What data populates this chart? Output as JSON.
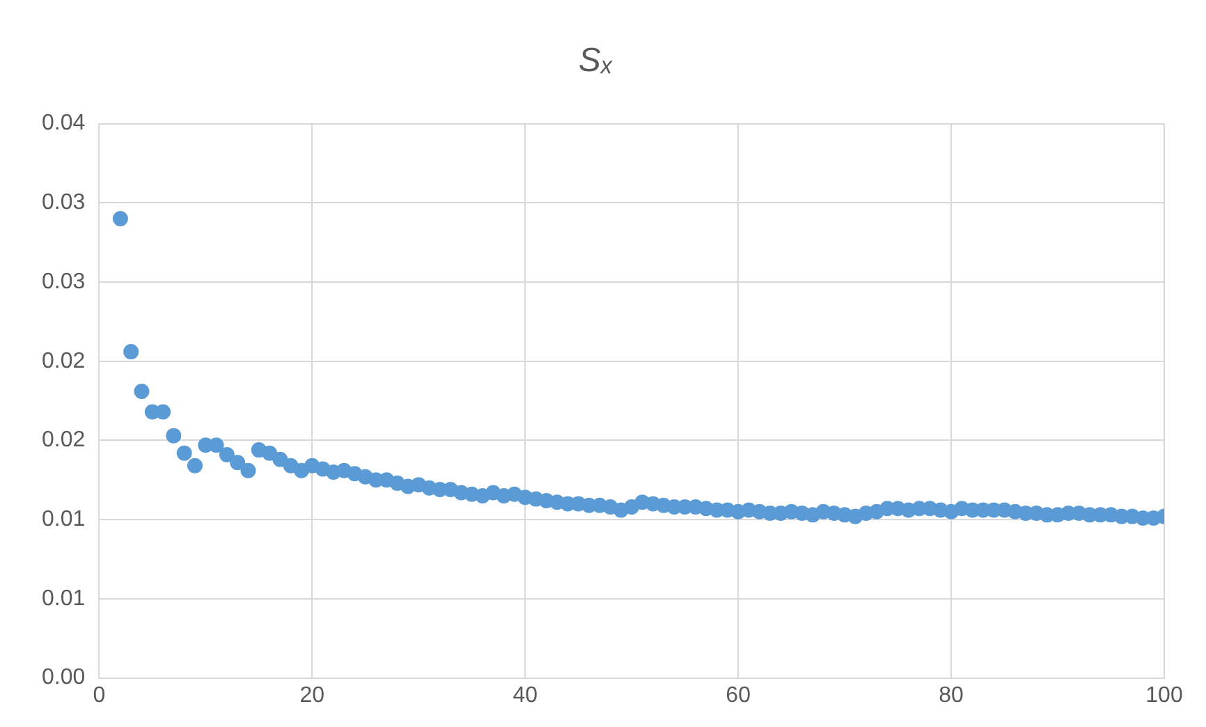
{
  "chart_data": {
    "type": "scatter",
    "title": "Sₓ",
    "marker": "circle",
    "grid": true,
    "legend": false,
    "xlim": [
      0,
      100
    ],
    "xticks": [
      0,
      20,
      40,
      60,
      80,
      100
    ],
    "ylim": [
      0,
      0.035
    ],
    "yticks": [
      {
        "value": 0,
        "label": "0.00"
      },
      {
        "value": 0.005,
        "label": "0.01"
      },
      {
        "value": 0.01,
        "label": "0.01"
      },
      {
        "value": 0.015,
        "label": "0.02"
      },
      {
        "value": 0.02,
        "label": "0.02"
      },
      {
        "value": 0.025,
        "label": "0.03"
      },
      {
        "value": 0.03,
        "label": "0.03"
      },
      {
        "value": 0.035,
        "label": "0.04"
      }
    ],
    "series": [
      {
        "color": "#5b9bd5",
        "x": [
          2,
          3,
          4,
          5,
          6,
          7,
          8,
          9,
          10,
          11,
          12,
          13,
          14,
          15,
          16,
          17,
          18,
          19,
          20,
          21,
          22,
          23,
          24,
          25,
          26,
          27,
          28,
          29,
          30,
          31,
          32,
          33,
          34,
          35,
          36,
          37,
          38,
          39,
          40,
          41,
          42,
          43,
          44,
          45,
          46,
          47,
          48,
          49,
          50,
          51,
          52,
          53,
          54,
          55,
          56,
          57,
          58,
          59,
          60,
          61,
          62,
          63,
          64,
          65,
          66,
          67,
          68,
          69,
          70,
          71,
          72,
          73,
          74,
          75,
          76,
          77,
          78,
          79,
          80,
          81,
          82,
          83,
          84,
          85,
          86,
          87,
          88,
          89,
          90,
          91,
          92,
          93,
          94,
          95,
          96,
          97,
          98,
          99,
          100
        ],
        "values": [
          0.029,
          0.0206,
          0.0181,
          0.0168,
          0.0168,
          0.0153,
          0.0142,
          0.0134,
          0.0147,
          0.0147,
          0.0141,
          0.0136,
          0.0131,
          0.0144,
          0.0142,
          0.0138,
          0.0134,
          0.0131,
          0.0134,
          0.0132,
          0.013,
          0.0131,
          0.0129,
          0.0127,
          0.0125,
          0.0125,
          0.0123,
          0.0121,
          0.0122,
          0.012,
          0.0119,
          0.0119,
          0.0117,
          0.0116,
          0.0115,
          0.0117,
          0.0115,
          0.0116,
          0.0114,
          0.0113,
          0.0112,
          0.0111,
          0.011,
          0.011,
          0.0109,
          0.0109,
          0.0108,
          0.0106,
          0.0108,
          0.0111,
          0.011,
          0.0109,
          0.0108,
          0.0108,
          0.0108,
          0.0107,
          0.0106,
          0.0106,
          0.0105,
          0.0106,
          0.0105,
          0.0104,
          0.0104,
          0.0105,
          0.0104,
          0.0103,
          0.0105,
          0.0104,
          0.0103,
          0.0102,
          0.0104,
          0.0105,
          0.0107,
          0.0107,
          0.0106,
          0.0107,
          0.0107,
          0.0106,
          0.0105,
          0.0107,
          0.0106,
          0.0106,
          0.0106,
          0.0106,
          0.0105,
          0.0104,
          0.0104,
          0.0103,
          0.0103,
          0.0104,
          0.0104,
          0.0103,
          0.0103,
          0.0103,
          0.0102,
          0.0102,
          0.0101,
          0.0101,
          0.0102
        ]
      }
    ]
  }
}
